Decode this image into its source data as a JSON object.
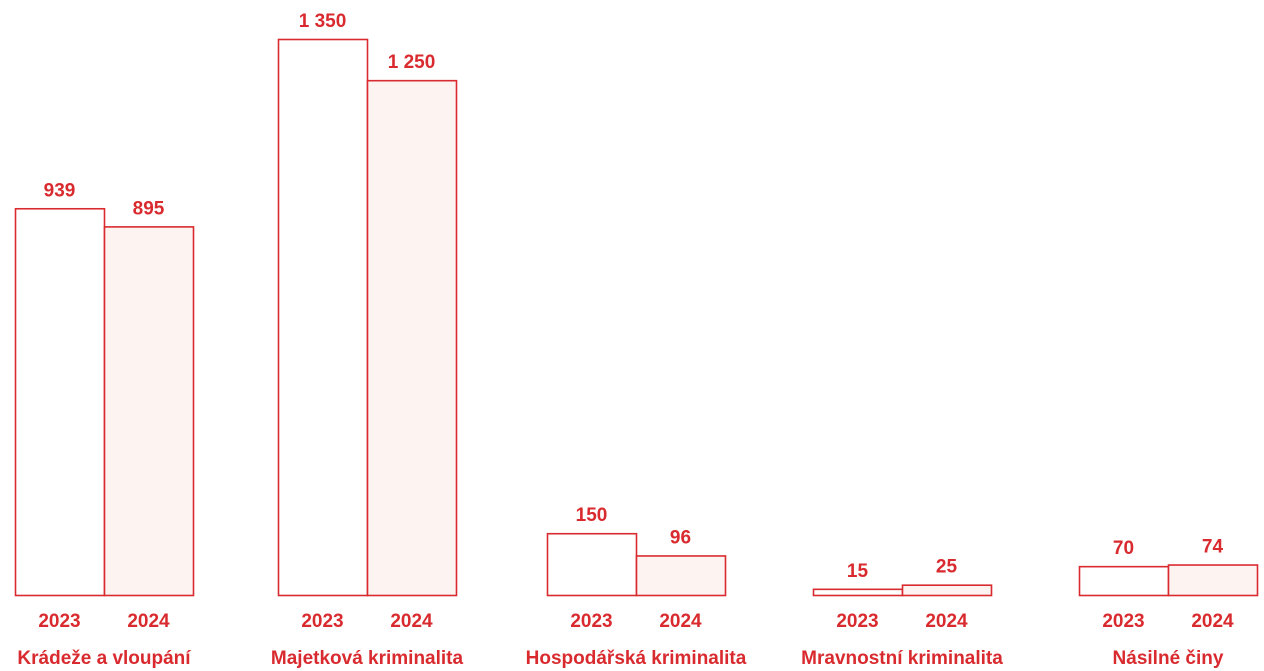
{
  "chart_data": {
    "type": "bar",
    "categories": [
      "Krádeže a vloupání",
      "Majetková kriminalita",
      "Hospodářská kriminalita",
      "Mravnostní kriminalita",
      "Násilné činy"
    ],
    "series": [
      {
        "name": "2023",
        "values": [
          939,
          1350,
          150,
          15,
          70
        ]
      },
      {
        "name": "2024",
        "values": [
          895,
          1250,
          96,
          25,
          74
        ]
      }
    ],
    "value_labels": [
      [
        "939",
        "895"
      ],
      [
        "1 350",
        "1 250"
      ],
      [
        "150",
        "96"
      ],
      [
        "15",
        "25"
      ],
      [
        "70",
        "74"
      ]
    ],
    "title": "",
    "xlabel": "",
    "ylabel": "",
    "ylim": [
      0,
      1350
    ],
    "grid": false,
    "legend": "none"
  },
  "colors": {
    "accent": "#d92b2f",
    "bar_2023_fill": "#ffffff",
    "bar_2024_fill": "#fdf3f1",
    "text": "#d92b2f"
  }
}
